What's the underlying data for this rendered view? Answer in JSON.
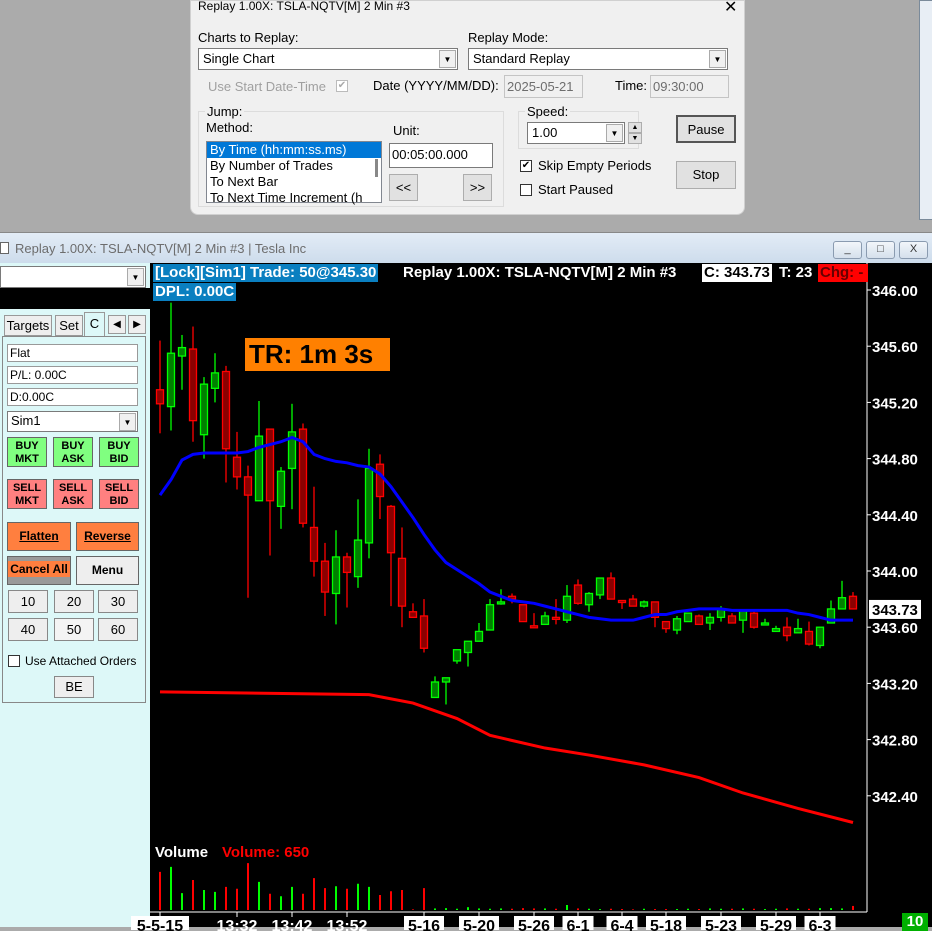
{
  "dialog": {
    "title": "Replay 1.00X: TSLA-NQTV[M]  2 Min  #3",
    "close_icon": "close-icon",
    "charts_label": "Charts to Replay:",
    "charts_value": "Single Chart",
    "mode_label": "Replay Mode:",
    "mode_value": "Standard Replay",
    "use_start_label": "Use Start Date-Time",
    "use_start_checked": true,
    "date_label": "Date (YYYY/MM/DD):",
    "date_value": "2025-05-21",
    "time_label": "Time:",
    "time_value": "09:30:00",
    "jump_label": "Jump:",
    "method_label": "Method:",
    "methods": [
      "By Time (hh:mm:ss.ms)",
      "By Number of Trades",
      "To Next Bar",
      "To Next Time Increment (h"
    ],
    "unit_label": "Unit:",
    "unit_value": "00:05:00.000",
    "back_label": "<<",
    "fwd_label": ">>",
    "speed_label": "Speed:",
    "speed_value": "1.00",
    "skip_label": "Skip Empty Periods",
    "skip_checked": true,
    "start_paused_label": "Start Paused",
    "start_paused_checked": false,
    "pause_label": "Pause",
    "stop_label": "Stop"
  },
  "window": {
    "title": "Replay 1.00X: TSLA-NQTV[M]  2 Min  #3 | Tesla Inc",
    "minimize": "_",
    "restore": "□",
    "close": "X"
  },
  "trade_panel": {
    "tabs": [
      "Targets",
      "Set",
      "C"
    ],
    "status": "Flat",
    "pl": "P/L: 0.00C",
    "daily": "D:0.00C",
    "account": "Sim1",
    "buy": [
      "BUY\nMKT",
      "BUY\nASK",
      "BUY\nBID"
    ],
    "sell": [
      "SELL\nMKT",
      "SELL\nASK",
      "SELL\nBID"
    ],
    "flatten": "Flatten",
    "reverse": "Reverse",
    "cancel_all": "Cancel All",
    "menu": "Menu",
    "qty": [
      "10",
      "20",
      "30",
      "40",
      "50",
      "60"
    ],
    "attached_label": "Use Attached Orders",
    "be": "BE"
  },
  "header": {
    "lock": "[Lock][Sim1]  Trade: 50@345.30",
    "replay": "Replay 1.00X: TSLA-NQTV[M]  2 Min  #3",
    "close": "C: 343.73",
    "ticks": "T: 23",
    "chg": "Chg: -",
    "dpl": "DPL: 0.00C"
  },
  "timer": "TR: 1m 3s",
  "volume": {
    "label": "Volume",
    "value_label": "Volume: 650"
  },
  "corner_badge": "10",
  "colors": {
    "up": "#00ff00",
    "up_fill": "#008000",
    "down": "#ff0000",
    "down_fill": "#8b0000",
    "ma_fast": "#0000ff",
    "ma_slow": "#ff0000",
    "lock_bg": "#0a7fc0",
    "timer_bg": "#ff8000"
  },
  "chart_data": {
    "type": "candlestick",
    "ylim": [
      341.9,
      346.1
    ],
    "yticks": [
      "346.00",
      "345.60",
      "345.20",
      "344.80",
      "344.40",
      "344.00",
      "343.60",
      "343.20",
      "342.80",
      "342.40"
    ],
    "last_price": "343.73",
    "ohlc": [
      [
        345.29,
        345.64,
        344.98,
        345.19
      ],
      [
        345.17,
        345.91,
        345.0,
        345.55
      ],
      [
        345.53,
        345.68,
        345.29,
        345.59
      ],
      [
        345.58,
        345.74,
        344.92,
        345.07
      ],
      [
        344.97,
        345.38,
        344.8,
        345.33
      ],
      [
        345.3,
        345.55,
        345.2,
        345.41
      ],
      [
        345.42,
        345.46,
        344.63,
        344.87
      ],
      [
        344.81,
        344.99,
        344.58,
        344.67
      ],
      [
        344.67,
        344.75,
        343.81,
        344.54
      ],
      [
        344.5,
        345.21,
        344.5,
        344.96
      ],
      [
        345.01,
        345.01,
        344.11,
        344.5
      ],
      [
        344.46,
        344.74,
        344.3,
        344.71
      ],
      [
        344.73,
        345.19,
        344.44,
        344.99
      ],
      [
        345.01,
        345.05,
        344.31,
        344.34
      ],
      [
        344.31,
        344.6,
        343.96,
        344.07
      ],
      [
        344.07,
        344.2,
        343.68,
        343.85
      ],
      [
        343.84,
        344.29,
        343.62,
        344.1
      ],
      [
        344.1,
        344.13,
        343.74,
        343.99
      ],
      [
        343.96,
        344.51,
        343.88,
        344.22
      ],
      [
        344.2,
        344.87,
        344.09,
        344.73
      ],
      [
        344.76,
        344.83,
        344.37,
        344.53
      ],
      [
        344.46,
        344.47,
        343.75,
        344.13
      ],
      [
        344.09,
        344.31,
        343.6,
        343.75
      ],
      [
        343.71,
        343.77,
        343.67,
        343.67
      ],
      [
        343.68,
        343.8,
        343.42,
        343.45
      ],
      [
        343.1,
        343.25,
        343.1,
        343.21
      ],
      [
        343.21,
        343.24,
        343.05,
        343.24
      ],
      [
        343.36,
        343.44,
        343.34,
        343.44
      ],
      [
        343.42,
        343.5,
        343.32,
        343.5
      ],
      [
        343.5,
        343.63,
        343.5,
        343.57
      ],
      [
        343.58,
        343.8,
        343.58,
        343.76
      ],
      [
        343.77,
        343.87,
        343.76,
        343.78
      ],
      [
        343.82,
        343.84,
        343.77,
        343.8
      ],
      [
        343.76,
        343.76,
        343.64,
        343.64
      ],
      [
        343.61,
        343.7,
        343.6,
        343.6
      ],
      [
        343.62,
        343.71,
        343.62,
        343.68
      ],
      [
        343.67,
        343.8,
        343.62,
        343.66
      ],
      [
        343.65,
        343.9,
        343.63,
        343.82
      ],
      [
        343.9,
        343.94,
        343.76,
        343.77
      ],
      [
        343.76,
        343.85,
        343.71,
        343.84
      ],
      [
        343.83,
        343.95,
        343.8,
        343.95
      ],
      [
        343.95,
        343.99,
        343.8,
        343.8
      ],
      [
        343.79,
        343.79,
        343.73,
        343.78
      ],
      [
        343.8,
        343.83,
        343.75,
        343.75
      ],
      [
        343.75,
        343.79,
        343.74,
        343.78
      ],
      [
        343.78,
        343.78,
        343.6,
        343.67
      ],
      [
        343.64,
        343.64,
        343.56,
        343.59
      ],
      [
        343.58,
        343.68,
        343.55,
        343.66
      ],
      [
        343.64,
        343.7,
        343.64,
        343.7
      ],
      [
        343.68,
        343.69,
        343.62,
        343.62
      ],
      [
        343.63,
        343.7,
        343.58,
        343.67
      ],
      [
        343.67,
        343.75,
        343.64,
        343.73
      ],
      [
        343.68,
        343.7,
        343.63,
        343.63
      ],
      [
        343.65,
        343.72,
        343.56,
        343.72
      ],
      [
        343.7,
        343.71,
        343.59,
        343.6
      ],
      [
        343.62,
        343.66,
        343.62,
        343.63
      ],
      [
        343.57,
        343.61,
        343.57,
        343.59
      ],
      [
        343.6,
        343.67,
        343.5,
        343.54
      ],
      [
        343.56,
        343.66,
        343.56,
        343.59
      ],
      [
        343.57,
        343.64,
        343.47,
        343.48
      ],
      [
        343.47,
        343.6,
        343.45,
        343.6
      ],
      [
        343.63,
        343.79,
        343.63,
        343.73
      ],
      [
        343.73,
        343.93,
        343.73,
        343.81
      ],
      [
        343.82,
        343.85,
        343.73,
        343.73
      ]
    ],
    "volume": [
      6100,
      6900,
      2700,
      4800,
      3200,
      2900,
      3700,
      3400,
      7500,
      4500,
      2600,
      2200,
      3700,
      2600,
      5100,
      3500,
      3800,
      3400,
      4200,
      3700,
      2400,
      3000,
      3200,
      100,
      3500,
      250,
      300,
      200,
      450,
      250,
      200,
      250,
      200,
      300,
      250,
      250,
      200,
      800,
      250,
      200,
      150,
      200,
      150,
      100,
      200,
      150,
      150,
      150,
      200,
      150,
      250,
      200,
      200,
      250,
      200,
      150,
      200,
      250,
      200,
      200,
      300,
      300,
      250,
      650
    ],
    "ma_fast": [
      344.54,
      344.65,
      344.79,
      344.83,
      344.84,
      344.84,
      344.84,
      344.84,
      344.85,
      344.88,
      344.9,
      344.92,
      344.95,
      344.92,
      344.83,
      344.8,
      344.78,
      344.77,
      344.75,
      344.74,
      344.69,
      344.6,
      344.49,
      344.38,
      344.26,
      344.15,
      344.06,
      344.01,
      343.96,
      343.91,
      343.85,
      343.82,
      343.79,
      343.78,
      343.77,
      343.75,
      343.73,
      343.71,
      343.69,
      343.67,
      343.66,
      343.65,
      343.65,
      343.65,
      343.67,
      343.69,
      343.69,
      343.71,
      343.72,
      343.73,
      343.73,
      343.73,
      343.72,
      343.72,
      343.72,
      343.72,
      343.72,
      343.72,
      343.7,
      343.69,
      343.67,
      343.65,
      343.65,
      343.65
    ],
    "ma_slow": [
      {
        "bar": 1,
        "value": 343.14
      },
      {
        "bar": 20,
        "value": 343.12
      },
      {
        "bar": 24,
        "value": 343.06
      },
      {
        "bar": 28,
        "value": 342.95
      },
      {
        "bar": 31,
        "value": 342.83
      },
      {
        "bar": 36,
        "value": 342.74
      },
      {
        "bar": 40,
        "value": 342.69
      },
      {
        "bar": 45,
        "value": 342.62
      },
      {
        "bar": 50,
        "value": 342.53
      },
      {
        "bar": 54,
        "value": 342.42
      },
      {
        "bar": 59,
        "value": 342.31
      },
      {
        "bar": 64,
        "value": 342.21
      }
    ],
    "xlabels": [
      {
        "bar": 1,
        "text": "5-5-15",
        "highlighted": true
      },
      {
        "bar": 8,
        "text": "13:32",
        "highlighted": false
      },
      {
        "bar": 13,
        "text": "13:42",
        "highlighted": false
      },
      {
        "bar": 18,
        "text": "13:52",
        "highlighted": false
      },
      {
        "bar": 25,
        "text": "5-16",
        "highlighted": true
      },
      {
        "bar": 30,
        "text": "5-20",
        "highlighted": true
      },
      {
        "bar": 35,
        "text": "5-26",
        "highlighted": true
      },
      {
        "bar": 39,
        "text": "6-1",
        "highlighted": true
      },
      {
        "bar": 43,
        "text": "6-4",
        "highlighted": true
      },
      {
        "bar": 47,
        "text": "5-18",
        "highlighted": true
      },
      {
        "bar": 52,
        "text": "5-23",
        "highlighted": true
      },
      {
        "bar": 57,
        "text": "5-29",
        "highlighted": true
      },
      {
        "bar": 61,
        "text": "6-3",
        "highlighted": true
      }
    ]
  }
}
